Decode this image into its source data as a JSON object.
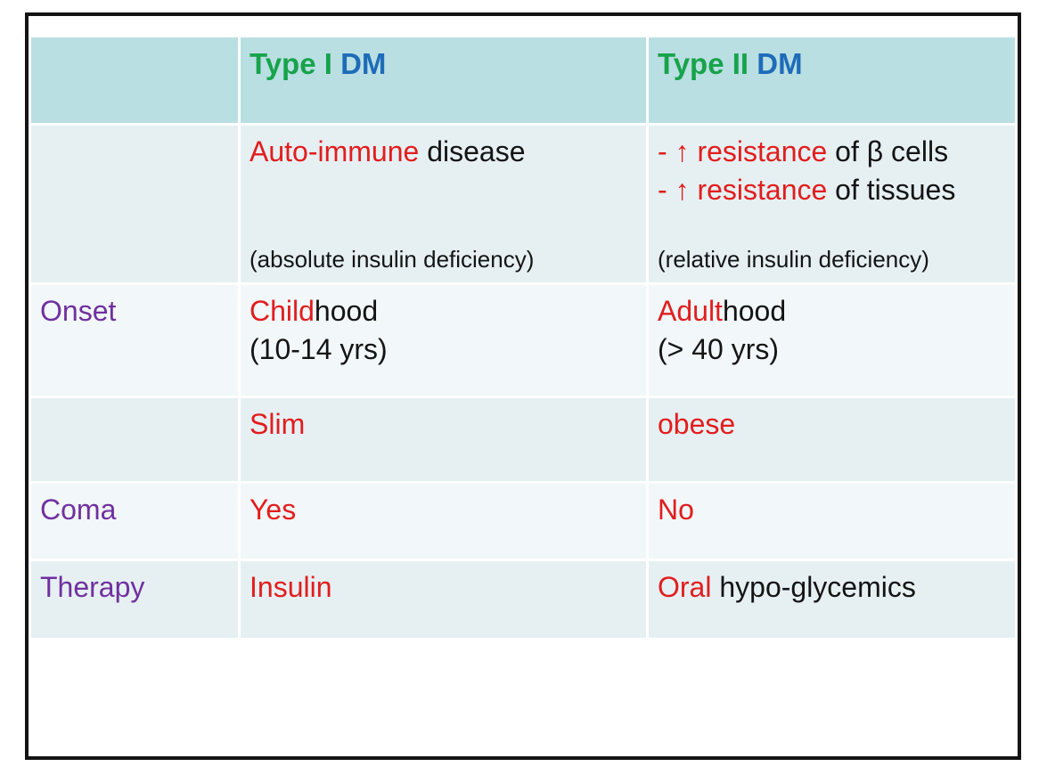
{
  "slide": {
    "kind": "comparison-table-slide",
    "colors": {
      "frame_border": "#141414",
      "header_bg": "#b9dfe3",
      "band_dark": "#e6f0f3",
      "band_light": "#f2f7f9",
      "green": "#18a34b",
      "blue": "#1e6cb8",
      "red": "#e21d1d",
      "purple": "#7030a0",
      "text": "#141414"
    }
  },
  "table": {
    "header": {
      "col1": "",
      "col2": {
        "name": "Type I ",
        "suffix": "DM"
      },
      "col3": {
        "name": "Type II ",
        "suffix": "DM"
      }
    },
    "rows": {
      "etiology": {
        "label": "",
        "type1": {
          "main_red": "Auto-immune",
          "main_black": " disease",
          "note": "(absolute insulin deficiency)"
        },
        "type2": {
          "line1_red": "- ↑ resistance",
          "line1_black": " of β cells",
          "line2_red": "- ↑ resistance",
          "line2_black": " of tissues",
          "note": "(relative insulin deficiency)"
        }
      },
      "onset": {
        "label": "Onset",
        "type1": {
          "red": "Child",
          "black": "hood",
          "sub": "(10-14 yrs)"
        },
        "type2": {
          "red": "Adult",
          "black": "hood",
          "sub": "(> 40 yrs)"
        }
      },
      "build": {
        "label": "",
        "type1": {
          "red": "Slim"
        },
        "type2": {
          "red": "obese"
        }
      },
      "coma": {
        "label": "Coma",
        "type1": {
          "red": "Yes"
        },
        "type2": {
          "red": "No"
        }
      },
      "therapy": {
        "label": "Therapy",
        "type1": {
          "red": "Insulin"
        },
        "type2": {
          "red": "Oral",
          "black": " hypo-glycemics"
        }
      }
    }
  }
}
